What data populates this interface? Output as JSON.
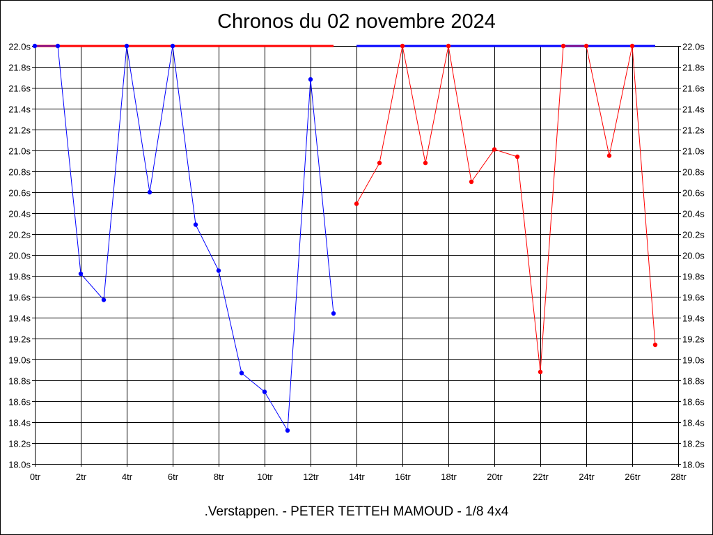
{
  "chart_data": {
    "type": "line",
    "title": "Chronos du 02 novembre 2024",
    "subtitle": ".Verstappen. - PETER TETTEH MAMOUD - 1/8 4x4",
    "x_ticks": [
      "0tr",
      "2tr",
      "4tr",
      "6tr",
      "8tr",
      "10tr",
      "12tr",
      "14tr",
      "16tr",
      "18tr",
      "20tr",
      "22tr",
      "24tr",
      "26tr",
      "28tr"
    ],
    "y_ticks": [
      "18.0s",
      "18.2s",
      "18.4s",
      "18.6s",
      "18.8s",
      "19.0s",
      "19.2s",
      "19.4s",
      "19.6s",
      "19.8s",
      "20.0s",
      "20.2s",
      "20.4s",
      "20.6s",
      "20.8s",
      "21.0s",
      "21.2s",
      "21.4s",
      "21.6s",
      "21.8s",
      "22.0s"
    ],
    "xlim": [
      0,
      28
    ],
    "ylim": [
      18.0,
      22.0
    ],
    "grid": true,
    "series": [
      {
        "color": "#0000ff",
        "x": [
          0,
          1,
          2,
          3,
          4,
          5,
          6,
          7,
          8,
          9,
          10,
          11,
          12,
          13
        ],
        "y": [
          22.0,
          22.0,
          19.82,
          19.57,
          22.0,
          20.6,
          22.0,
          20.29,
          19.85,
          18.87,
          18.69,
          18.32,
          21.68,
          19.44
        ]
      },
      {
        "color": "#ff0000",
        "x": [
          14,
          15,
          16,
          17,
          18,
          19,
          20,
          21,
          22,
          23,
          24,
          25,
          26,
          27
        ],
        "y": [
          20.49,
          20.88,
          22.0,
          20.88,
          22.0,
          20.7,
          21.01,
          20.94,
          18.88,
          22.0,
          22.0,
          20.95,
          22.0,
          19.14
        ]
      }
    ],
    "reference_lines": [
      {
        "color": "#ff0000",
        "x": [
          0,
          13
        ],
        "y": 22.0
      },
      {
        "color": "#0000ff",
        "x": [
          14,
          27
        ],
        "y": 22.0
      }
    ]
  }
}
